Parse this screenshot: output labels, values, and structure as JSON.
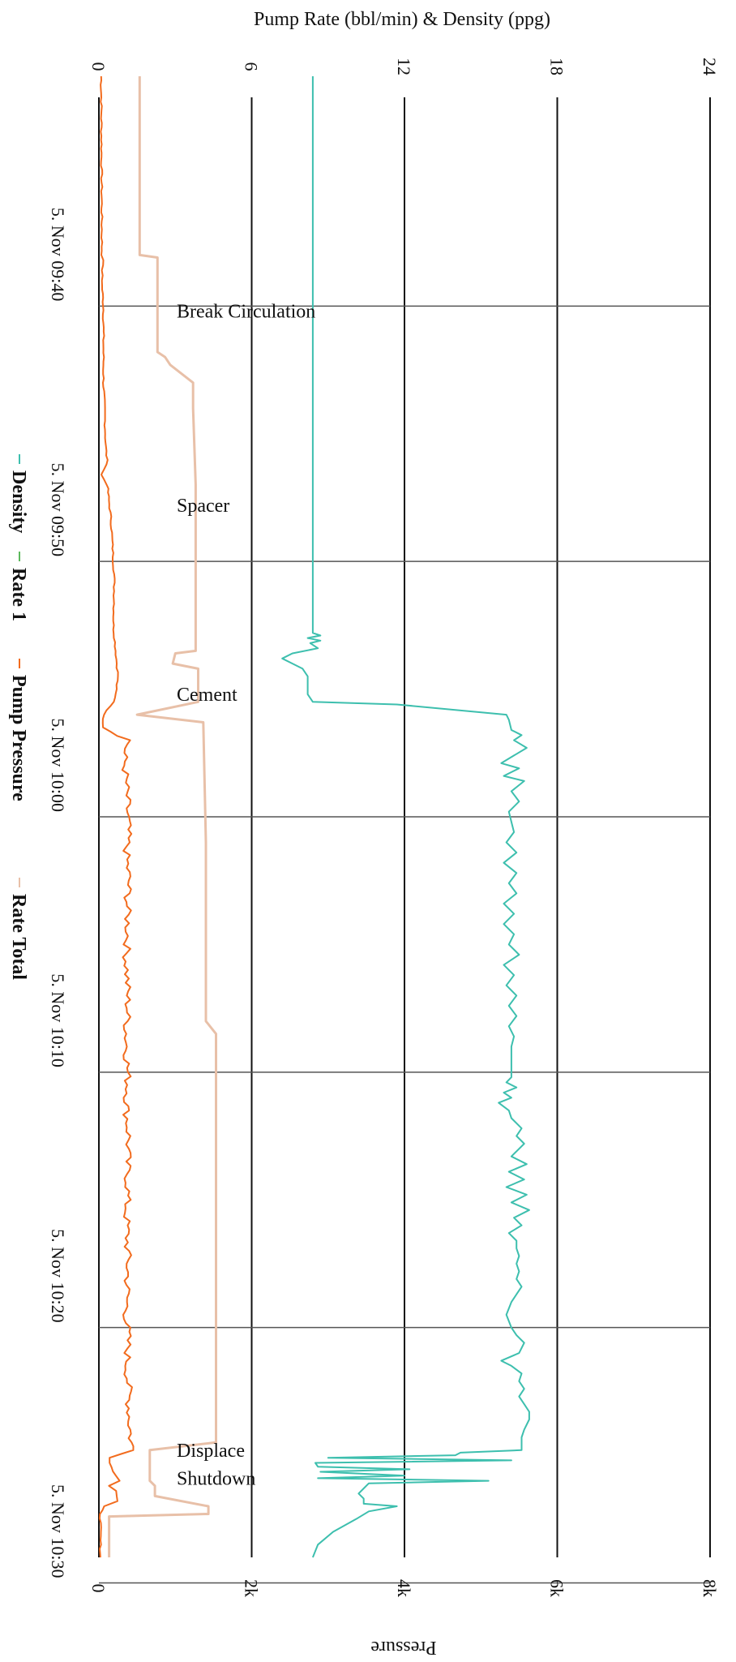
{
  "chart_data": {
    "type": "line",
    "orientation": "rotated-90-clockwise",
    "top_axis_title": "Pump Rate (bbl/min) & Density (ppg)",
    "bottom_axis_title": "Pressure",
    "top_axis": {
      "min": 0,
      "max": 24,
      "ticks": [
        0,
        6,
        12,
        18,
        24
      ],
      "tick_labels": [
        "0",
        "6",
        "12",
        "18",
        "24"
      ]
    },
    "bottom_axis": {
      "min": 0,
      "max": 8000,
      "ticks": [
        0,
        2000,
        4000,
        6000,
        8000
      ],
      "tick_labels": [
        "0",
        "2k",
        "4k",
        "6k",
        "8k"
      ]
    },
    "time_axis": {
      "min_minutes": -4,
      "max_minutes": 54,
      "ticks": [
        5,
        15,
        25,
        35,
        45
      ],
      "tick_labels": [
        "5. Nov 09:40",
        "5. Nov 09:50",
        "5. Nov 10:00",
        "5. Nov 10:10",
        "5. Nov 10:20",
        "5. Nov 10:30"
      ],
      "tick_minutes": [
        5,
        15,
        25,
        35,
        45,
        55
      ]
    },
    "annotations": [
      {
        "label": "Break Circulation",
        "t": 5.2
      },
      {
        "label": "Spacer",
        "t": 12.8
      },
      {
        "label": "Cement",
        "t": 20.2
      },
      {
        "label": "Displace",
        "t": 49.8
      },
      {
        "label": "Shutdown",
        "t": 50.9
      }
    ],
    "series": [
      {
        "name": "Density",
        "color": "#3dbfae",
        "axis": "top",
        "points": [
          [
            -4,
            8.4
          ],
          [
            17.8,
            8.4
          ],
          [
            17.9,
            8.7
          ],
          [
            18.0,
            8.2
          ],
          [
            18.1,
            8.7
          ],
          [
            18.2,
            8.3
          ],
          [
            18.4,
            8.6
          ],
          [
            18.6,
            7.6
          ],
          [
            18.8,
            7.2
          ],
          [
            19.0,
            7.6
          ],
          [
            19.2,
            8.0
          ],
          [
            19.5,
            8.2
          ],
          [
            20.2,
            8.2
          ],
          [
            20.5,
            8.4
          ],
          [
            20.6,
            11.7
          ],
          [
            21.0,
            16.0
          ],
          [
            21.2,
            16.1
          ],
          [
            21.6,
            16.2
          ],
          [
            21.8,
            16.6
          ],
          [
            22.0,
            16.3
          ],
          [
            22.3,
            16.8
          ],
          [
            22.6,
            16.3
          ],
          [
            22.9,
            15.8
          ],
          [
            23.1,
            16.5
          ],
          [
            23.4,
            15.9
          ],
          [
            23.6,
            16.7
          ],
          [
            24.0,
            16.2
          ],
          [
            24.4,
            16.5
          ],
          [
            24.8,
            16.1
          ],
          [
            25.2,
            16.2
          ],
          [
            25.6,
            16.3
          ],
          [
            26.0,
            16.0
          ],
          [
            26.4,
            16.4
          ],
          [
            26.8,
            15.9
          ],
          [
            27.2,
            16.4
          ],
          [
            27.6,
            16.1
          ],
          [
            28.0,
            16.4
          ],
          [
            28.4,
            15.9
          ],
          [
            28.8,
            16.3
          ],
          [
            29.2,
            15.9
          ],
          [
            29.6,
            16.3
          ],
          [
            30.0,
            16.1
          ],
          [
            30.4,
            16.5
          ],
          [
            30.8,
            15.9
          ],
          [
            31.2,
            16.3
          ],
          [
            31.6,
            16.0
          ],
          [
            32.0,
            16.4
          ],
          [
            32.4,
            16.1
          ],
          [
            32.8,
            16.4
          ],
          [
            33.2,
            16.1
          ],
          [
            33.6,
            16.3
          ],
          [
            34.0,
            16.2
          ],
          [
            34.4,
            16.2
          ],
          [
            34.8,
            16.2
          ],
          [
            35.2,
            16.2
          ],
          [
            35.4,
            16.0
          ],
          [
            35.6,
            16.4
          ],
          [
            35.8,
            15.9
          ],
          [
            36.0,
            16.2
          ],
          [
            36.2,
            15.7
          ],
          [
            36.5,
            16.1
          ],
          [
            36.8,
            16.2
          ],
          [
            37.2,
            16.6
          ],
          [
            37.5,
            16.4
          ],
          [
            37.8,
            16.7
          ],
          [
            38.1,
            16.4
          ],
          [
            38.3,
            16.2
          ],
          [
            38.6,
            16.8
          ],
          [
            38.9,
            16.1
          ],
          [
            39.2,
            16.7
          ],
          [
            39.5,
            16.0
          ],
          [
            39.8,
            16.8
          ],
          [
            40.1,
            16.2
          ],
          [
            40.4,
            16.9
          ],
          [
            40.7,
            16.3
          ],
          [
            41.0,
            16.6
          ],
          [
            41.3,
            16.1
          ],
          [
            41.6,
            16.4
          ],
          [
            41.9,
            16.4
          ],
          [
            42.2,
            16.5
          ],
          [
            42.5,
            16.4
          ],
          [
            42.8,
            16.5
          ],
          [
            43.1,
            16.4
          ],
          [
            43.4,
            16.6
          ],
          [
            43.7,
            16.4
          ],
          [
            44.0,
            16.2
          ],
          [
            44.5,
            16.0
          ],
          [
            45.0,
            16.2
          ],
          [
            45.3,
            16.4
          ],
          [
            45.6,
            16.7
          ],
          [
            46.0,
            16.5
          ],
          [
            46.3,
            15.8
          ],
          [
            46.5,
            16.2
          ],
          [
            46.8,
            16.6
          ],
          [
            47.1,
            16.5
          ],
          [
            47.4,
            16.7
          ],
          [
            47.7,
            16.5
          ],
          [
            48.0,
            16.7
          ],
          [
            48.3,
            16.9
          ],
          [
            48.6,
            16.9
          ],
          [
            49.0,
            16.7
          ],
          [
            49.3,
            16.6
          ],
          [
            49.6,
            16.6
          ],
          [
            49.8,
            16.6
          ],
          [
            49.9,
            14.2
          ],
          [
            50.0,
            14.0
          ],
          [
            50.1,
            9.0
          ],
          [
            50.2,
            16.2
          ],
          [
            50.3,
            8.5
          ],
          [
            50.45,
            8.6
          ],
          [
            50.55,
            12.2
          ],
          [
            50.65,
            8.7
          ],
          [
            50.8,
            12.0
          ],
          [
            50.9,
            8.6
          ],
          [
            51.0,
            15.3
          ],
          [
            51.1,
            10.6
          ],
          [
            51.3,
            10.4
          ],
          [
            51.5,
            10.2
          ],
          [
            51.7,
            10.4
          ],
          [
            51.9,
            10.4
          ],
          [
            52.0,
            11.7
          ],
          [
            52.2,
            10.6
          ],
          [
            52.5,
            10.1
          ],
          [
            53.0,
            9.2
          ],
          [
            53.5,
            8.6
          ],
          [
            54,
            8.4
          ]
        ]
      },
      {
        "name": "Rate 1",
        "color": "#5cb85c",
        "axis": "top",
        "points": []
      },
      {
        "name": "Pump Pressure",
        "color": "#f26b1d",
        "axis": "bottom",
        "points": [
          [
            -4,
            30
          ],
          [
            3.0,
            40
          ],
          [
            3.4,
            60
          ],
          [
            3.6,
            30
          ],
          [
            3.8,
            50
          ],
          [
            4.2,
            40
          ],
          [
            5.0,
            60
          ],
          [
            6.0,
            60
          ],
          [
            8.0,
            60
          ],
          [
            9.5,
            80
          ],
          [
            10.5,
            90
          ],
          [
            11.2,
            110
          ],
          [
            11.6,
            30
          ],
          [
            12.0,
            110
          ],
          [
            12.6,
            130
          ],
          [
            13.4,
            160
          ],
          [
            14.5,
            180
          ],
          [
            15.5,
            200
          ],
          [
            16.5,
            200
          ],
          [
            17.5,
            190
          ],
          [
            18.5,
            220
          ],
          [
            19.5,
            250
          ],
          [
            20.5,
            200
          ],
          [
            21.0,
            60
          ],
          [
            21.5,
            60
          ],
          [
            22.0,
            400
          ],
          [
            22.5,
            330
          ],
          [
            23.5,
            350
          ],
          [
            24.5,
            370
          ],
          [
            25.5,
            380
          ],
          [
            26.5,
            360
          ],
          [
            27.5,
            390
          ],
          [
            28.5,
            370
          ],
          [
            29.5,
            380
          ],
          [
            30.5,
            360
          ],
          [
            31.5,
            370
          ],
          [
            32.5,
            380
          ],
          [
            33.5,
            360
          ],
          [
            34.5,
            370
          ],
          [
            35.5,
            380
          ],
          [
            36.5,
            360
          ],
          [
            37.5,
            390
          ],
          [
            38.5,
            370
          ],
          [
            39.5,
            380
          ],
          [
            40.5,
            360
          ],
          [
            41.5,
            370
          ],
          [
            42.5,
            380
          ],
          [
            43.5,
            370
          ],
          [
            44.5,
            360
          ],
          [
            45.5,
            380
          ],
          [
            46.5,
            370
          ],
          [
            47.5,
            390
          ],
          [
            48.5,
            400
          ],
          [
            49.5,
            420
          ],
          [
            49.8,
            450
          ],
          [
            50.1,
            150
          ],
          [
            50.3,
            140
          ],
          [
            50.8,
            220
          ],
          [
            51.0,
            280
          ],
          [
            51.2,
            140
          ],
          [
            51.4,
            230
          ],
          [
            51.8,
            240
          ],
          [
            52.0,
            60
          ],
          [
            52.3,
            20
          ],
          [
            53.0,
            20
          ],
          [
            54,
            20
          ]
        ],
        "noise_amplitude": 50
      },
      {
        "name": "Rate Total",
        "color": "#e8c0a8",
        "axis": "top",
        "points": [
          [
            -4,
            1.6
          ],
          [
            3.0,
            1.6
          ],
          [
            3.1,
            2.3
          ],
          [
            5.0,
            2.3
          ],
          [
            6.8,
            2.3
          ],
          [
            7.0,
            2.6
          ],
          [
            7.3,
            2.8
          ],
          [
            8.0,
            3.7
          ],
          [
            9.0,
            3.7
          ],
          [
            12.0,
            3.8
          ],
          [
            16.0,
            3.8
          ],
          [
            18.5,
            3.8
          ],
          [
            18.6,
            3.0
          ],
          [
            19.0,
            2.9
          ],
          [
            19.2,
            3.9
          ],
          [
            20.5,
            3.9
          ],
          [
            21.0,
            1.5
          ],
          [
            21.3,
            4.1
          ],
          [
            26.0,
            4.2
          ],
          [
            33.0,
            4.2
          ],
          [
            33.5,
            4.6
          ],
          [
            40.0,
            4.6
          ],
          [
            49.5,
            4.6
          ],
          [
            49.8,
            2.0
          ],
          [
            51.0,
            2.0
          ],
          [
            51.2,
            2.2
          ],
          [
            51.6,
            2.2
          ],
          [
            52.0,
            4.3
          ],
          [
            52.3,
            4.3
          ],
          [
            52.4,
            0.4
          ],
          [
            54,
            0.4
          ]
        ]
      }
    ],
    "legend": {
      "position": "left",
      "entries": [
        {
          "name": "Density",
          "color": "#3dbfae"
        },
        {
          "name": "Rate 1",
          "color": "#5cb85c"
        },
        {
          "name": "Pump Pressure",
          "color": "#f26b1d"
        },
        {
          "name": "Rate Total",
          "color": "#e8c0a8"
        }
      ]
    },
    "grid": true
  }
}
